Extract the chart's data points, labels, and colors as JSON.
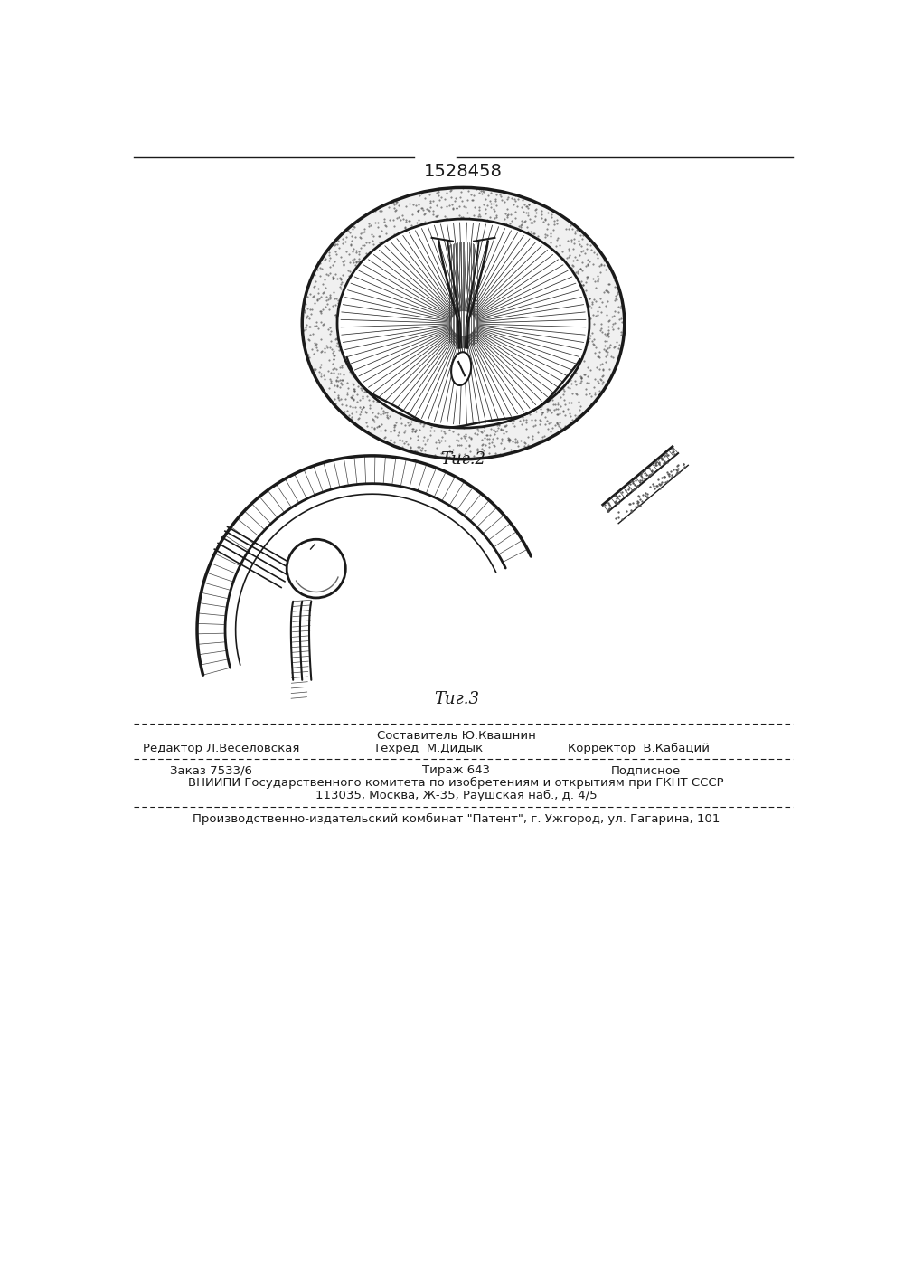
{
  "patent_number": "1528458",
  "fig2_label": "Τиг.2",
  "fig3_label": "Τиг.3",
  "footer_line1_left": "Редактор Л.Веселовская",
  "footer_line1_center": "Составитель Ю.Квашнин",
  "footer_line1_right": "Корректор  В.Кабаций",
  "footer_line2_center": "Техред  М.Дидык",
  "footer_order": "Заказ 7533/6",
  "footer_tirazh": "Тираж 643",
  "footer_podpisnoe": "Подписное",
  "footer_vniiipi": "ВНИИПИ Государственного комитета по изобретениям и открытиям при ГКНТ СССР",
  "footer_address": "113035, Москва, Ж-35, Раушская наб., д. 4/5",
  "footer_patent": "Производственно-издательский комбинат \"Патент\", г. Ужгород, ул. Гагарина, 101",
  "bg_color": "#ffffff",
  "line_color": "#1a1a1a"
}
